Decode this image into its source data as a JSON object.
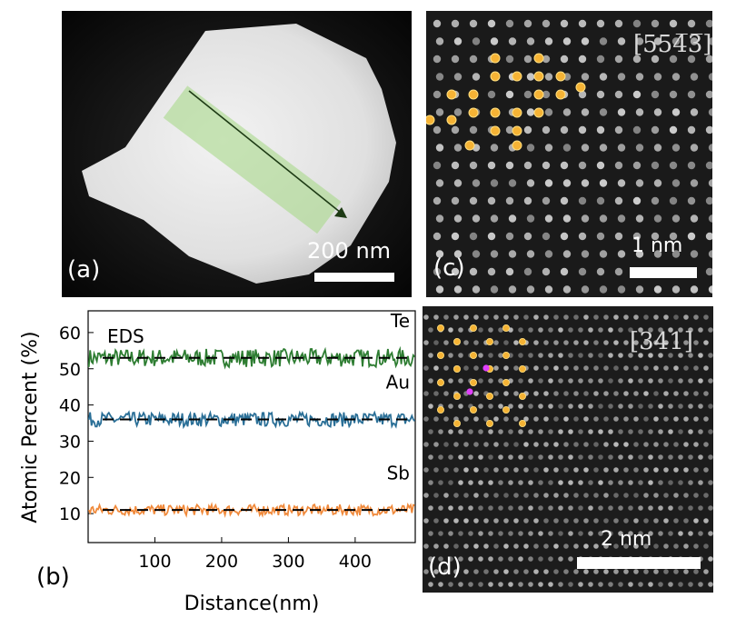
{
  "panel_a": {
    "label": "(a)",
    "scale": "200 nm"
  },
  "panel_c": {
    "label": "(c)",
    "zone_axis": "[554̅3̅]",
    "scale": "1 nm"
  },
  "panel_d": {
    "label": "(d)",
    "zone_axis": "[341]",
    "scale": "2 nm"
  },
  "chart_data": {
    "type": "line",
    "panel_label": "(b)",
    "title": "",
    "annotation": "EDS",
    "xlabel": "Distance(nm)",
    "ylabel": "Atomic Percent (%)",
    "xlim": [
      0,
      490
    ],
    "ylim": [
      2,
      66
    ],
    "x_ticks": [
      100,
      200,
      300,
      400
    ],
    "y_ticks": [
      10,
      20,
      30,
      40,
      50,
      60
    ],
    "grid": false,
    "legend": "none",
    "series": [
      {
        "name": "Te",
        "mean": 53.0,
        "noise": 2.5,
        "color": "#2e7d32"
      },
      {
        "name": "Au",
        "mean": 36.0,
        "noise": 2.0,
        "color": "#2a6f97"
      },
      {
        "name": "Sb",
        "mean": 11.0,
        "noise": 1.5,
        "color": "#f08a3c"
      }
    ]
  }
}
